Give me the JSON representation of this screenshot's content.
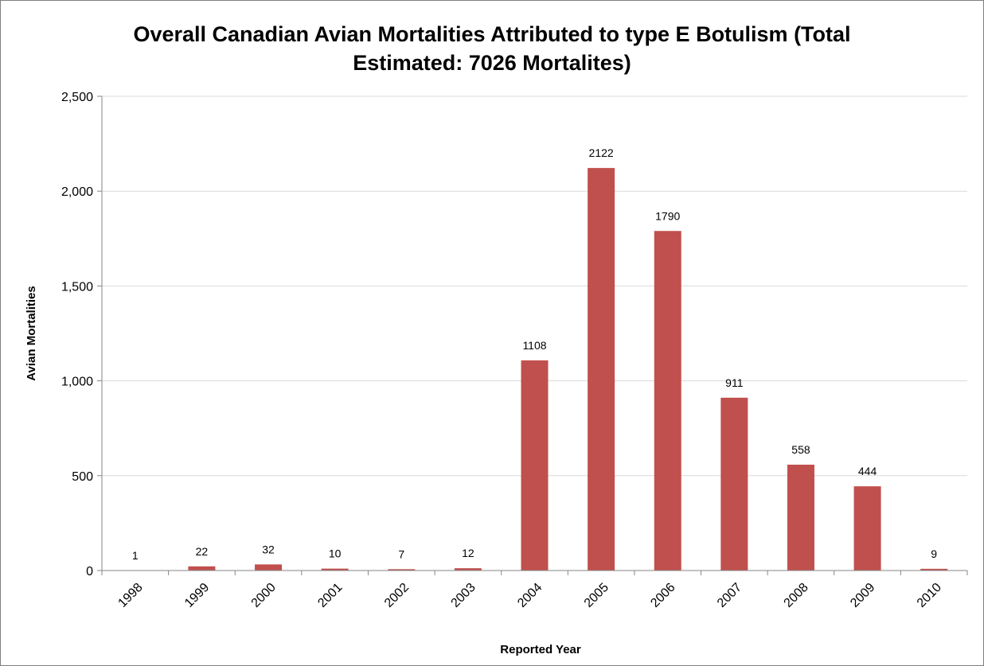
{
  "chart_data": {
    "type": "bar",
    "title_lines": [
      "Overall Canadian Avian Mortalities Attributed to type E Botulism (Total",
      "Estimated: 7026 Mortalites)"
    ],
    "xlabel": "Reported Year",
    "ylabel": "Avian Mortalities",
    "categories": [
      "1998",
      "1999",
      "2000",
      "2001",
      "2002",
      "2003",
      "2004",
      "2005",
      "2006",
      "2007",
      "2008",
      "2009",
      "2010"
    ],
    "values": [
      1,
      22,
      32,
      10,
      7,
      12,
      1108,
      2122,
      1790,
      911,
      558,
      444,
      9
    ],
    "data_labels": [
      "1",
      "22",
      "32",
      "10",
      "7",
      "12",
      "1108",
      "2122",
      "1790",
      "911",
      "558",
      "444",
      "9"
    ],
    "ylim": [
      0,
      2500
    ],
    "yticks": [
      0,
      500,
      1000,
      1500,
      2000,
      2500
    ],
    "ytick_labels": [
      "0",
      "500",
      "1,000",
      "1,500",
      "2,000",
      "2,500"
    ],
    "grid": true,
    "legend": "none",
    "bar_color": "#c0504d",
    "gridline_color": "#d9d9d9",
    "axis_color": "#868686"
  }
}
